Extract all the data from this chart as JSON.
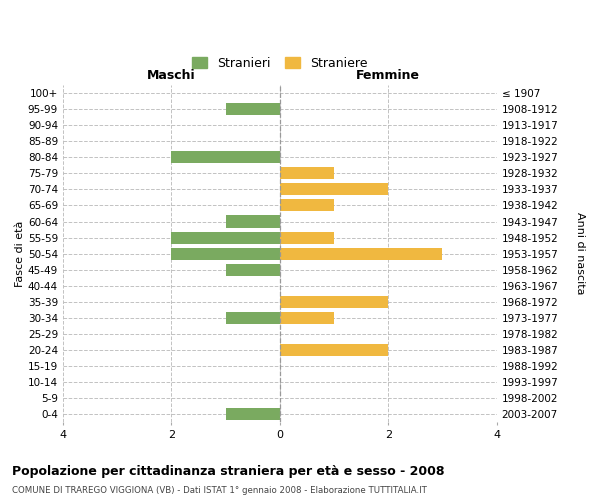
{
  "age_groups": [
    "100+",
    "95-99",
    "90-94",
    "85-89",
    "80-84",
    "75-79",
    "70-74",
    "65-69",
    "60-64",
    "55-59",
    "50-54",
    "45-49",
    "40-44",
    "35-39",
    "30-34",
    "25-29",
    "20-24",
    "15-19",
    "10-14",
    "5-9",
    "0-4"
  ],
  "birth_years": [
    "≤ 1907",
    "1908-1912",
    "1913-1917",
    "1918-1922",
    "1923-1927",
    "1928-1932",
    "1933-1937",
    "1938-1942",
    "1943-1947",
    "1948-1952",
    "1953-1957",
    "1958-1962",
    "1963-1967",
    "1968-1972",
    "1973-1977",
    "1978-1982",
    "1983-1987",
    "1988-1992",
    "1993-1997",
    "1998-2002",
    "2003-2007"
  ],
  "stranieri": [
    0,
    1,
    0,
    0,
    2,
    0,
    0,
    0,
    1,
    2,
    2,
    1,
    0,
    0,
    1,
    0,
    0,
    0,
    0,
    0,
    1
  ],
  "straniere": [
    0,
    0,
    0,
    0,
    0,
    1,
    2,
    1,
    0,
    1,
    3,
    0,
    0,
    2,
    1,
    0,
    2,
    0,
    0,
    0,
    0
  ],
  "color_stranieri": "#7aaa60",
  "color_straniere": "#f0b840",
  "xlim": 4,
  "title": "Popolazione per cittadinanza straniera per età e sesso - 2008",
  "subtitle": "COMUNE DI TRAREGO VIGGIONA (VB) - Dati ISTAT 1° gennaio 2008 - Elaborazione TUTTITALIA.IT",
  "ylabel_left": "Fasce di età",
  "ylabel_right": "Anni di nascita",
  "header_left": "Maschi",
  "header_right": "Femmine",
  "legend_stranieri": "Stranieri",
  "legend_straniere": "Straniere",
  "background_color": "#ffffff",
  "grid_color": "#bbbbbb"
}
